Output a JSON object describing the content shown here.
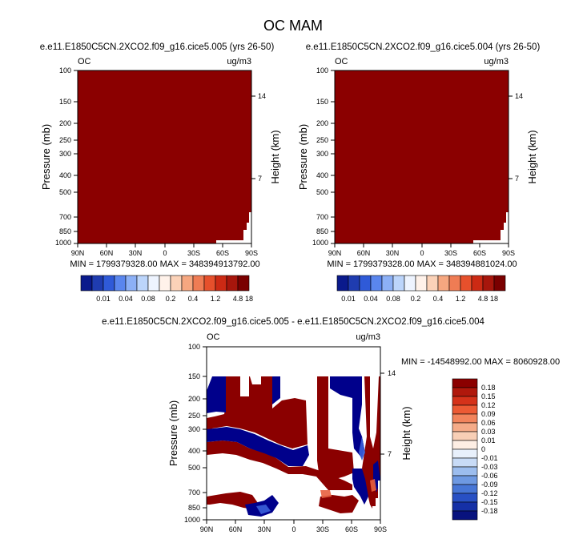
{
  "page_title": "OC MAM",
  "chart_data": [
    {
      "type": "heatmap",
      "panel": "top-left",
      "title": "e.e11.E1850C5CN.2XCO2.f09_g16.cice5.005 (yrs 26-50)",
      "left_label": "OC",
      "units": "ug/m3",
      "ylabel": "Pressure (mb)",
      "y2label": "Height (km)",
      "x_ticks": [
        "90N",
        "60N",
        "30N",
        "0",
        "30S",
        "60S",
        "90S"
      ],
      "y_ticks": [
        "100",
        "150",
        "200",
        "250",
        "300",
        "400",
        "500",
        "700",
        "850",
        "1000"
      ],
      "y2_ticks": [
        "14",
        "7"
      ],
      "min_max_text": "MIN = 1799379328.00   MAX = 348394913792.00",
      "fill": "all values above top contour level (>18)"
    },
    {
      "type": "heatmap",
      "panel": "top-right",
      "title": "e.e11.E1850C5CN.2XCO2.f09_g16.cice5.004 (yrs 26-50)",
      "left_label": "OC",
      "units": "ug/m3",
      "ylabel": "Pressure (mb)",
      "y2label": "Height (km)",
      "x_ticks": [
        "90N",
        "60N",
        "30N",
        "0",
        "30S",
        "60S",
        "90S"
      ],
      "y_ticks": [
        "100",
        "150",
        "200",
        "250",
        "300",
        "400",
        "500",
        "700",
        "850",
        "1000"
      ],
      "y2_ticks": [
        "14",
        "7"
      ],
      "min_max_text": "MIN = 1799379328.00   MAX = 348394881024.00",
      "fill": "all values above top contour level (>18)"
    },
    {
      "type": "heatmap",
      "panel": "bottom",
      "title": "e.e11.E1850C5CN.2XCO2.f09_g16.cice5.005 - e.e11.E1850C5CN.2XCO2.f09_g16.cice5.004",
      "left_label": "OC",
      "units": "ug/m3",
      "ylabel": "Pressure (mb)",
      "y2label": "Height (km)",
      "x_ticks": [
        "90N",
        "60N",
        "30N",
        "0",
        "30S",
        "60S",
        "90S"
      ],
      "y_ticks": [
        "100",
        "150",
        "200",
        "250",
        "300",
        "400",
        "500",
        "700",
        "850",
        "1000"
      ],
      "y2_ticks": [
        "14",
        "7"
      ],
      "min_max_text": "MIN = -14548992.00  MAX = 8060928.00",
      "fill": "alternating positive (dark red) and negative (dark blue) bands"
    }
  ],
  "colorbar_top": {
    "labels": [
      "0.01",
      "0.04",
      "0.08",
      "0.2",
      "0.4",
      "1.2",
      "4.8",
      "18"
    ],
    "colors": [
      "#0a1a8c",
      "#1f3cb0",
      "#2f5ad8",
      "#5a86ee",
      "#8cb0f6",
      "#bcd5fb",
      "#eef4ff",
      "#fff2ea",
      "#fbd2b8",
      "#f6a780",
      "#ef7c54",
      "#e6502c",
      "#cc2a14",
      "#a7160c",
      "#7a0000"
    ]
  },
  "colorbar_diff": {
    "labels": [
      "0.18",
      "0.15",
      "0.12",
      "0.09",
      "0.06",
      "0.03",
      "0.01",
      "0",
      "-0.01",
      "-0.03",
      "-0.06",
      "-0.09",
      "-0.12",
      "-0.15",
      "-0.18"
    ],
    "colors": [
      "#8b0000",
      "#b0180c",
      "#d5321a",
      "#ec5a34",
      "#f2845c",
      "#f5ab88",
      "#f8cfb6",
      "#fdeee4",
      "#e8f0fb",
      "#c8dbf6",
      "#9cbdee",
      "#6e99e2",
      "#4776d6",
      "#2850c4",
      "#1530a6",
      "#08127e"
    ]
  },
  "palette": {
    "sat_red": "#8b0000",
    "sat_blue": "#00008b"
  }
}
